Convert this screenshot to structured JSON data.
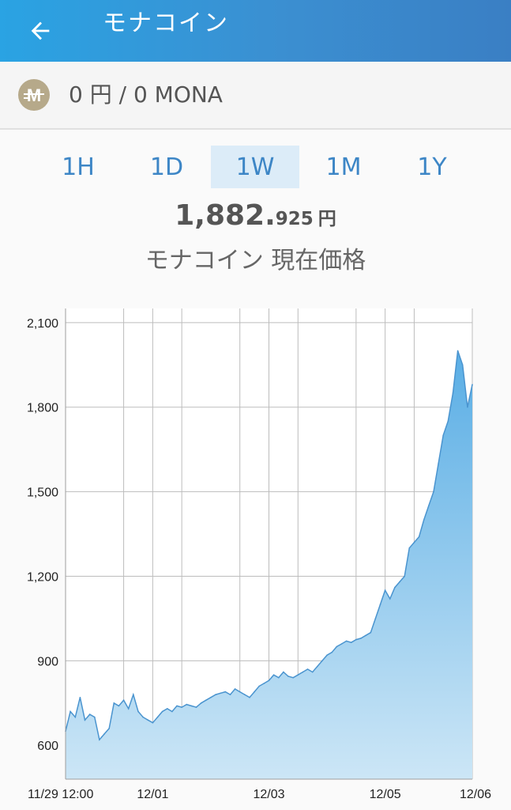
{
  "appbar": {
    "title": "モナコイン",
    "back_icon": "arrow-left-icon"
  },
  "balance": {
    "text": "0 円 / 0 MONA",
    "coin_icon": "monacoin-icon",
    "coin_letter": "M"
  },
  "tabs": [
    {
      "label": "1H",
      "active": false
    },
    {
      "label": "1D",
      "active": false
    },
    {
      "label": "1W",
      "active": true
    },
    {
      "label": "1M",
      "active": false
    },
    {
      "label": "1Y",
      "active": false
    }
  ],
  "price": {
    "integer": "1,882.",
    "decimal": "925",
    "unit": "円"
  },
  "caption": "モナコイン 現在価格",
  "colors": {
    "appbar": "#3b8fd1",
    "accent": "#3d86c6",
    "line": "#4a94cf",
    "fill_top": "#5aaee5",
    "fill_bottom": "#cce6f6"
  },
  "chart_data": {
    "type": "area",
    "title": "",
    "xlabel": "",
    "ylabel": "",
    "ylim": [
      480,
      2150
    ],
    "xlim": [
      "11/29 12:00",
      "12/06 12:00"
    ],
    "yticks": [
      600,
      900,
      1200,
      1500,
      1800,
      2100
    ],
    "ytick_labels": [
      "600",
      "900",
      "1,200",
      "1,500",
      "1,800",
      "2,100"
    ],
    "xtick_labels": [
      "11/29 12:00",
      "12/01",
      "12/03",
      "12/05",
      "12/06"
    ],
    "xtick_positions": [
      "11/29 12:00",
      "12/01 00:00",
      "12/03 00:00",
      "12/05 00:00",
      "12/06 00:00"
    ],
    "vertical_gridlines": [
      "11/29 12:00",
      "11/30 12:00",
      "12/01 00:00",
      "12/01 12:00",
      "12/02 12:00",
      "12/03 00:00",
      "12/03 12:00",
      "12/04 12:00",
      "12/05 00:00",
      "12/05 12:00",
      "12/06 12:00"
    ],
    "grid": true,
    "x_hours": [
      0,
      2,
      4,
      6,
      8,
      10,
      12,
      14,
      16,
      18,
      20,
      22,
      24,
      26,
      28,
      30,
      32,
      34,
      36,
      38,
      40,
      42,
      44,
      46,
      48,
      50,
      52,
      54,
      56,
      58,
      60,
      62,
      64,
      66,
      68,
      70,
      72,
      74,
      76,
      78,
      80,
      82,
      84,
      86,
      88,
      90,
      92,
      94,
      96,
      98,
      100,
      102,
      104,
      106,
      108,
      110,
      112,
      114,
      116,
      118,
      120,
      122,
      124,
      126,
      128,
      130,
      132,
      134,
      136,
      138,
      140,
      142,
      144,
      146,
      148,
      150,
      152,
      154,
      156,
      158,
      160,
      162,
      164,
      166,
      168
    ],
    "values": [
      650,
      720,
      700,
      770,
      690,
      710,
      700,
      620,
      640,
      660,
      750,
      740,
      760,
      730,
      780,
      720,
      700,
      690,
      680,
      700,
      720,
      730,
      720,
      740,
      735,
      745,
      740,
      735,
      750,
      760,
      770,
      780,
      785,
      790,
      780,
      800,
      790,
      780,
      770,
      790,
      810,
      820,
      830,
      850,
      840,
      860,
      845,
      840,
      850,
      860,
      870,
      860,
      880,
      900,
      920,
      930,
      950,
      960,
      970,
      965,
      975,
      980,
      990,
      1000,
      1050,
      1100,
      1150,
      1120,
      1160,
      1180,
      1200,
      1300,
      1320,
      1340,
      1400,
      1450,
      1500,
      1600,
      1700,
      1750,
      1850,
      2000,
      1950,
      1800,
      1880
    ]
  }
}
